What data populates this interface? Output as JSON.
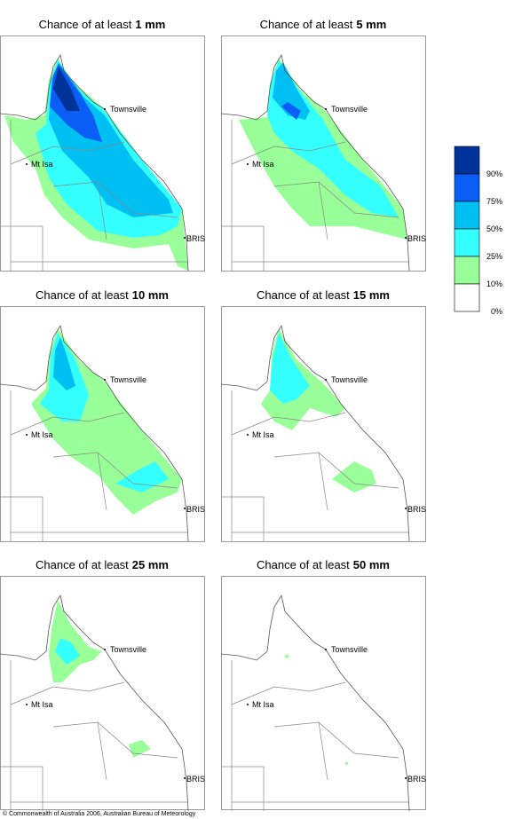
{
  "panels": [
    {
      "title_prefix": "Chance of at least",
      "threshold": "1 mm",
      "places": [
        "Townsville",
        "Mt Isa",
        "BRIS"
      ]
    },
    {
      "title_prefix": "Chance of at least",
      "threshold": "5 mm",
      "places": [
        "Townsville",
        "Mt Isa",
        "BRIS"
      ]
    },
    {
      "title_prefix": "Chance of at least",
      "threshold": "10 mm",
      "places": [
        "Townsville",
        "Mt Isa",
        "BRIS"
      ]
    },
    {
      "title_prefix": "Chance of at least",
      "threshold": "15 mm",
      "places": [
        "Townsville",
        "Mt Isa",
        "BRIS"
      ]
    },
    {
      "title_prefix": "Chance of at least",
      "threshold": "25 mm",
      "places": [
        "Townsville",
        "Mt Isa",
        "BRIS"
      ]
    },
    {
      "title_prefix": "Chance of at least",
      "threshold": "50 mm",
      "places": [
        "Townsville",
        "Mt Isa",
        "BRIS"
      ]
    }
  ],
  "legend": {
    "labels": [
      "90%",
      "75%",
      "50%",
      "25%",
      "10%",
      "0%"
    ],
    "colors": [
      "#003399",
      "#0a5ef5",
      "#00bff2",
      "#33ffff",
      "#99ff99",
      "#ffffff"
    ]
  },
  "footer": "© Commonwealth of Australia 2006, Australian Bureau of Meteorology"
}
